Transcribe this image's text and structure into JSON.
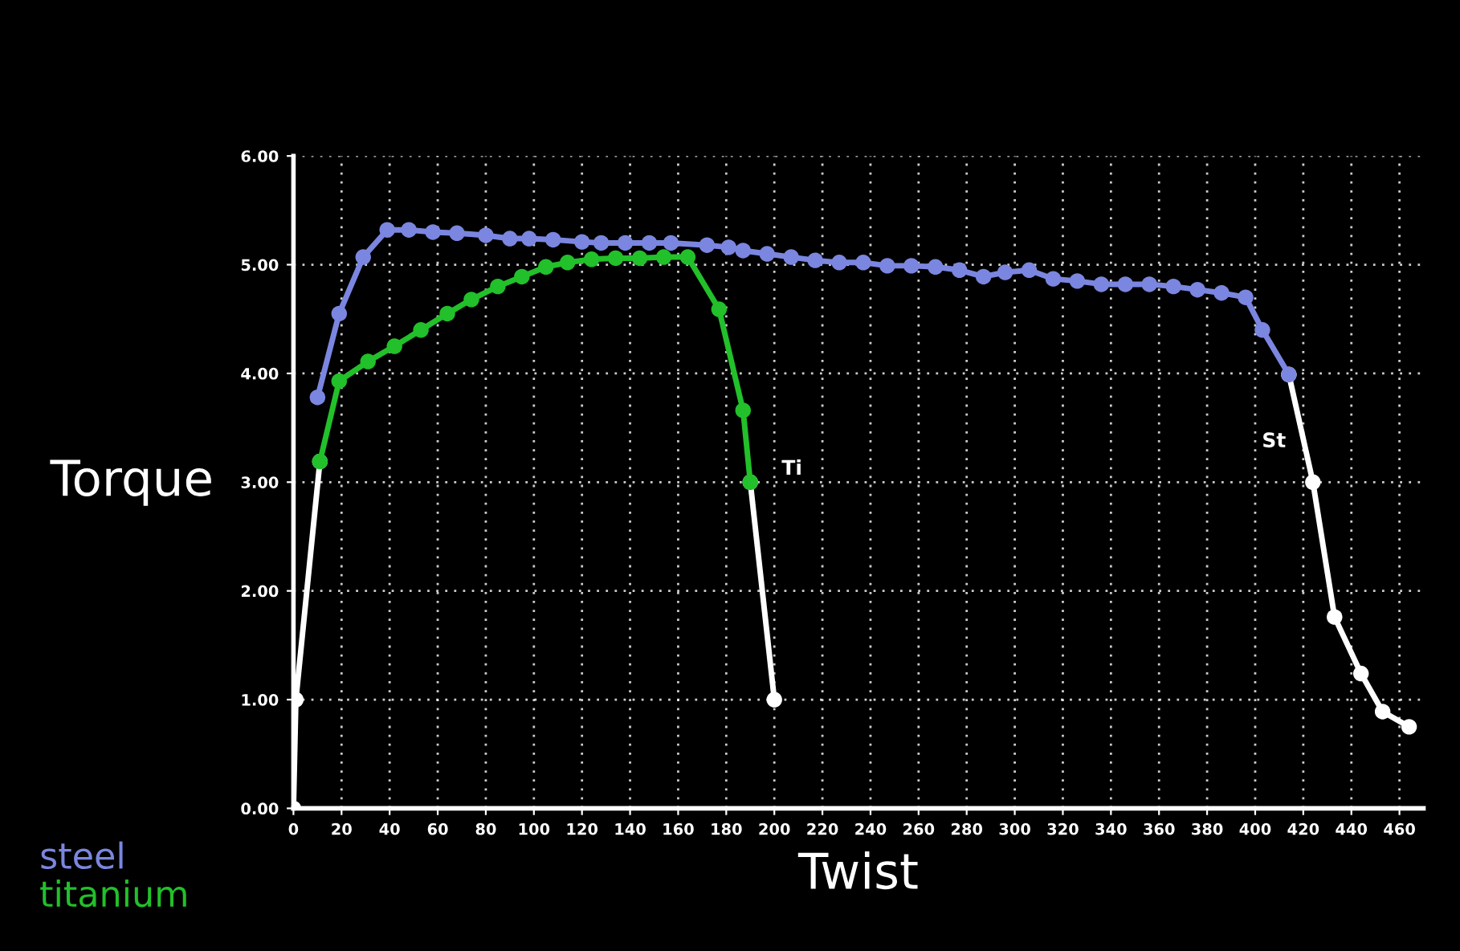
{
  "chart_data": {
    "type": "line",
    "xlabel": "Twist",
    "ylabel": "Torque",
    "xlim": [
      0,
      470
    ],
    "xticks": [
      0,
      20,
      40,
      60,
      80,
      100,
      120,
      140,
      160,
      180,
      200,
      220,
      240,
      260,
      280,
      300,
      320,
      340,
      360,
      380,
      400,
      420,
      440,
      460
    ],
    "ylim": [
      0,
      6
    ],
    "yticks": [
      {
        "value": 0,
        "label": "0.00"
      },
      {
        "value": 1,
        "label": "1.00"
      },
      {
        "value": 2,
        "label": "2.00"
      },
      {
        "value": 3,
        "label": "3.00"
      },
      {
        "value": 4,
        "label": "4.00"
      },
      {
        "value": 5,
        "label": "5.00"
      },
      {
        "value": 6,
        "label": "6.00"
      }
    ],
    "grid": true,
    "marker": "circle",
    "line_style": "solid",
    "legend": "bottom left",
    "series": [
      {
        "name": "steel",
        "color": "#7b86e0",
        "x": [
          10,
          19,
          29,
          39,
          48,
          58,
          68,
          80,
          90,
          98,
          108,
          120,
          128,
          138,
          148,
          157,
          172,
          181,
          187,
          197,
          207,
          217,
          227,
          237,
          247,
          257,
          267,
          277,
          287,
          296,
          306,
          316,
          326,
          336,
          346,
          356,
          366,
          376,
          386,
          396,
          403,
          414
        ],
        "values": [
          3.78,
          4.55,
          5.07,
          5.32,
          5.32,
          5.3,
          5.29,
          5.27,
          5.24,
          5.24,
          5.23,
          5.21,
          5.2,
          5.2,
          5.2,
          5.2,
          5.18,
          5.16,
          5.13,
          5.1,
          5.07,
          5.04,
          5.02,
          5.02,
          4.99,
          4.99,
          4.98,
          4.95,
          4.89,
          4.93,
          4.95,
          4.87,
          4.85,
          4.82,
          4.82,
          4.82,
          4.8,
          4.77,
          4.74,
          4.7,
          4.4,
          3.99
        ]
      },
      {
        "name": "titanium",
        "color": "#22c02a",
        "x": [
          11,
          19,
          31,
          42,
          53,
          64,
          74,
          85,
          95,
          105,
          114,
          124,
          134,
          144,
          154,
          164,
          177,
          187,
          190
        ],
        "values": [
          3.19,
          3.93,
          4.11,
          4.25,
          4.4,
          4.55,
          4.68,
          4.8,
          4.89,
          4.98,
          5.02,
          5.05,
          5.06,
          5.06,
          5.07,
          5.07,
          4.59,
          3.66,
          3.0
        ]
      },
      {
        "color": "#ffffff",
        "x": [
          0,
          1,
          11
        ],
        "values": [
          0,
          1.0,
          3.19
        ]
      },
      {
        "color": "#ffffff",
        "x": [
          190,
          200
        ],
        "values": [
          3.0,
          1.0
        ]
      },
      {
        "color": "#ffffff",
        "x": [
          414,
          424,
          433,
          444,
          453,
          464
        ],
        "values": [
          3.99,
          3.0,
          1.76,
          1.24,
          0.89,
          0.75
        ]
      }
    ],
    "annotations": [
      "Ti",
      "St"
    ]
  }
}
